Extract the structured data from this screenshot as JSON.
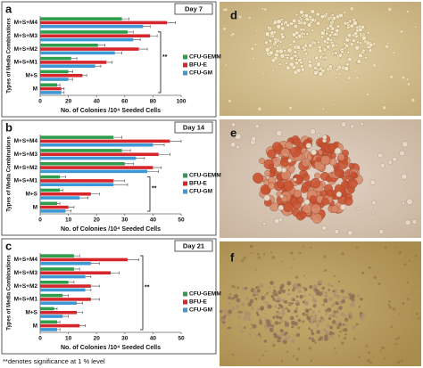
{
  "chart_data": [
    {
      "type": "barh",
      "panel_label": "a",
      "annotation": "Day 7",
      "significance": "**",
      "xlabel": "No. of Colonies /10⁴ Seeded Cells",
      "ylabel": "Types of Media Combinations",
      "categories": [
        "M+S+M4",
        "M+S+M3",
        "M+S+M2",
        "M+S+M1",
        "M+S",
        "M"
      ],
      "series": [
        {
          "name": "CFU-GEMM",
          "color": "#2f9e4c",
          "values": [
            58,
            62,
            41,
            22,
            20,
            12
          ],
          "errors": [
            5,
            4,
            5,
            4,
            3,
            2
          ]
        },
        {
          "name": "BFU-E",
          "color": "#d7262b",
          "values": [
            90,
            78,
            70,
            47,
            30,
            15
          ],
          "errors": [
            6,
            5,
            6,
            4,
            3,
            2
          ]
        },
        {
          "name": "CFU-GM",
          "color": "#3d98d5",
          "values": [
            73,
            66,
            53,
            39,
            20,
            15
          ],
          "errors": [
            5,
            5,
            5,
            4,
            3,
            2
          ]
        }
      ],
      "xlim": [
        0,
        100
      ],
      "xticks": [
        0,
        20,
        40,
        60,
        80,
        100
      ],
      "legend": "right"
    },
    {
      "type": "barh",
      "panel_label": "b",
      "annotation": "Day 14",
      "significance": "**",
      "xlabel": "No. of Colonies /10⁴ Seeded Cells",
      "ylabel": "Types of Media Combinations",
      "categories": [
        "M+S+M4",
        "M+S+M3",
        "M+S+M2",
        "M+S+M1",
        "M+S",
        "M"
      ],
      "series": [
        {
          "name": "CFU-GEMM",
          "color": "#2f9e4c",
          "values": [
            26,
            29,
            30,
            7,
            7,
            6
          ],
          "errors": [
            3,
            3,
            3,
            2,
            1,
            1
          ]
        },
        {
          "name": "BFU-E",
          "color": "#d7262b",
          "values": [
            46,
            42,
            40,
            26,
            18,
            10
          ],
          "errors": [
            4,
            4,
            3,
            4,
            3,
            2
          ]
        },
        {
          "name": "CFU-GM",
          "color": "#3d98d5",
          "values": [
            40,
            34,
            38,
            26,
            14,
            9
          ],
          "errors": [
            4,
            3,
            4,
            5,
            3,
            2
          ]
        }
      ],
      "xlim": [
        0,
        50
      ],
      "xticks": [
        0,
        10,
        20,
        30,
        40,
        50
      ],
      "legend": "right"
    },
    {
      "type": "barh",
      "panel_label": "c",
      "annotation": "Day 21",
      "significance": "**",
      "xlabel": "No. of Colonies /10⁴ Seeded Cells",
      "ylabel": "Types of Media Combinations",
      "categories": [
        "M+S+M4",
        "M+S+M3",
        "M+S+M2",
        "M+S+M1",
        "M+S",
        "M"
      ],
      "series": [
        {
          "name": "CFU-GEMM",
          "color": "#2f9e4c",
          "values": [
            12,
            12,
            10,
            8,
            5,
            6
          ],
          "errors": [
            2,
            2,
            2,
            2,
            1,
            1
          ]
        },
        {
          "name": "BFU-E",
          "color": "#d7262b",
          "values": [
            31,
            25,
            18,
            18,
            13,
            14
          ],
          "errors": [
            4,
            3,
            3,
            3,
            2,
            2
          ]
        },
        {
          "name": "CFU-GM",
          "color": "#3d98d5",
          "values": [
            18,
            16,
            16,
            13,
            8,
            6
          ],
          "errors": [
            3,
            2,
            2,
            2,
            2,
            1
          ]
        }
      ],
      "xlim": [
        0,
        50
      ],
      "xticks": [
        0,
        10,
        20,
        30,
        40,
        50
      ],
      "legend": "right"
    }
  ],
  "panels": [
    {
      "label": "d"
    },
    {
      "label": "e"
    },
    {
      "label": "f"
    }
  ],
  "footnote": "**denotes significance at 1 % level"
}
